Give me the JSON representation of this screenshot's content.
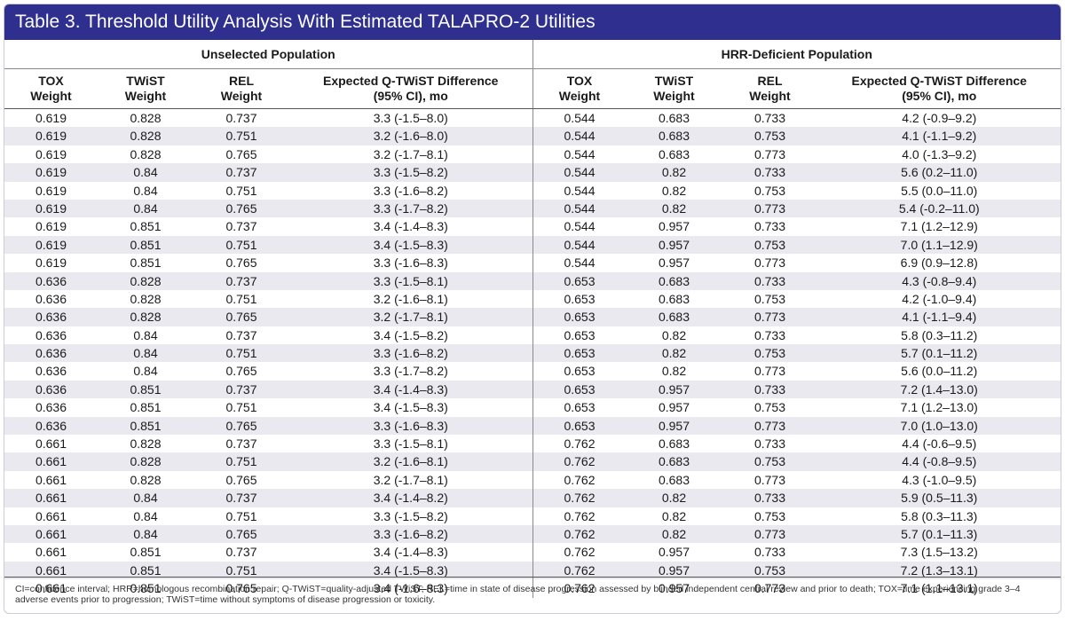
{
  "title": "Table 3. Threshold Utility Analysis With Estimated TALAPRO-2 Utilities",
  "groups": {
    "left": "Unselected Population",
    "right": "HRR-Deficient Population"
  },
  "columns": {
    "tox": "TOX\nWeight",
    "twist": "TWiST\nWeight",
    "rel": "REL\nWeight",
    "diff": "Expected Q-TWiST Difference\n(95% CI), mo"
  },
  "rows": [
    [
      "0.619",
      "0.828",
      "0.737",
      "3.3 (-1.5–8.0)",
      "0.544",
      "0.683",
      "0.733",
      "4.2 (-0.9–9.2)"
    ],
    [
      "0.619",
      "0.828",
      "0.751",
      "3.2 (-1.6–8.0)",
      "0.544",
      "0.683",
      "0.753",
      "4.1 (-1.1–9.2)"
    ],
    [
      "0.619",
      "0.828",
      "0.765",
      "3.2 (-1.7–8.1)",
      "0.544",
      "0.683",
      "0.773",
      "4.0 (-1.3–9.2)"
    ],
    [
      "0.619",
      "0.84",
      "0.737",
      "3.3 (-1.5–8.2)",
      "0.544",
      "0.82",
      "0.733",
      "5.6 (0.2–11.0)"
    ],
    [
      "0.619",
      "0.84",
      "0.751",
      "3.3 (-1.6–8.2)",
      "0.544",
      "0.82",
      "0.753",
      "5.5 (0.0–11.0)"
    ],
    [
      "0.619",
      "0.84",
      "0.765",
      "3.3 (-1.7–8.2)",
      "0.544",
      "0.82",
      "0.773",
      "5.4 (-0.2–11.0)"
    ],
    [
      "0.619",
      "0.851",
      "0.737",
      "3.4 (-1.4–8.3)",
      "0.544",
      "0.957",
      "0.733",
      "7.1 (1.2–12.9)"
    ],
    [
      "0.619",
      "0.851",
      "0.751",
      "3.4 (-1.5–8.3)",
      "0.544",
      "0.957",
      "0.753",
      "7.0 (1.1–12.9)"
    ],
    [
      "0.619",
      "0.851",
      "0.765",
      "3.3 (-1.6–8.3)",
      "0.544",
      "0.957",
      "0.773",
      "6.9 (0.9–12.8)"
    ],
    [
      "0.636",
      "0.828",
      "0.737",
      "3.3 (-1.5–8.1)",
      "0.653",
      "0.683",
      "0.733",
      "4.3 (-0.8–9.4)"
    ],
    [
      "0.636",
      "0.828",
      "0.751",
      "3.2 (-1.6–8.1)",
      "0.653",
      "0.683",
      "0.753",
      "4.2 (-1.0–9.4)"
    ],
    [
      "0.636",
      "0.828",
      "0.765",
      "3.2 (-1.7–8.1)",
      "0.653",
      "0.683",
      "0.773",
      "4.1 (-1.1–9.4)"
    ],
    [
      "0.636",
      "0.84",
      "0.737",
      "3.4 (-1.5–8.2)",
      "0.653",
      "0.82",
      "0.733",
      "5.8 (0.3–11.2)"
    ],
    [
      "0.636",
      "0.84",
      "0.751",
      "3.3 (-1.6–8.2)",
      "0.653",
      "0.82",
      "0.753",
      "5.7 (0.1–11.2)"
    ],
    [
      "0.636",
      "0.84",
      "0.765",
      "3.3 (-1.7–8.2)",
      "0.653",
      "0.82",
      "0.773",
      "5.6 (0.0–11.2)"
    ],
    [
      "0.636",
      "0.851",
      "0.737",
      "3.4 (-1.4–8.3)",
      "0.653",
      "0.957",
      "0.733",
      "7.2 (1.4–13.0)"
    ],
    [
      "0.636",
      "0.851",
      "0.751",
      "3.4 (-1.5–8.3)",
      "0.653",
      "0.957",
      "0.753",
      "7.1 (1.2–13.0)"
    ],
    [
      "0.636",
      "0.851",
      "0.765",
      "3.3 (-1.6–8.3)",
      "0.653",
      "0.957",
      "0.773",
      "7.0 (1.0–13.0)"
    ],
    [
      "0.661",
      "0.828",
      "0.737",
      "3.3 (-1.5–8.1)",
      "0.762",
      "0.683",
      "0.733",
      "4.4 (-0.6–9.5)"
    ],
    [
      "0.661",
      "0.828",
      "0.751",
      "3.2 (-1.6–8.1)",
      "0.762",
      "0.683",
      "0.753",
      "4.4 (-0.8–9.5)"
    ],
    [
      "0.661",
      "0.828",
      "0.765",
      "3.2 (-1.7–8.1)",
      "0.762",
      "0.683",
      "0.773",
      "4.3 (-1.0–9.5)"
    ],
    [
      "0.661",
      "0.84",
      "0.737",
      "3.4 (-1.4–8.2)",
      "0.762",
      "0.82",
      "0.733",
      "5.9 (0.5–11.3)"
    ],
    [
      "0.661",
      "0.84",
      "0.751",
      "3.3 (-1.5–8.2)",
      "0.762",
      "0.82",
      "0.753",
      "5.8 (0.3–11.3)"
    ],
    [
      "0.661",
      "0.84",
      "0.765",
      "3.3 (-1.6–8.2)",
      "0.762",
      "0.82",
      "0.773",
      "5.7 (0.1–11.3)"
    ],
    [
      "0.661",
      "0.851",
      "0.737",
      "3.4 (-1.4–8.3)",
      "0.762",
      "0.957",
      "0.733",
      "7.3 (1.5–13.2)"
    ],
    [
      "0.661",
      "0.851",
      "0.751",
      "3.4 (-1.5–8.3)",
      "0.762",
      "0.957",
      "0.753",
      "7.2 (1.3–13.1)"
    ],
    [
      "0.661",
      "0.851",
      "0.765",
      "3.4 (-1.6–8.3)",
      "0.762",
      "0.957",
      "0.773",
      "7.1 (1.1–13.1)"
    ]
  ],
  "footnote": "CI=confidence interval; HRR=homologous recombination repair; Q-TWiST=quality-adjusted TWiST; REL=time in state of disease progression assessed by blinded independent central review and prior to death; TOX=time experiencing grade 3–4 adverse events prior to progression; TWiST=time without symptoms of disease progression or toxicity.",
  "colors": {
    "title_bg": "#2e2f8f",
    "stripe": "#e9e9ef"
  }
}
